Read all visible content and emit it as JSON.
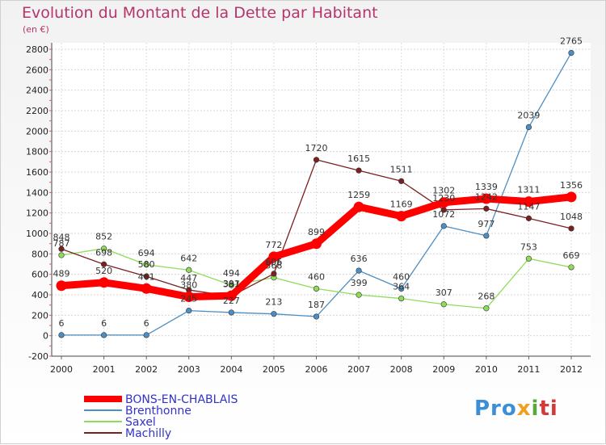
{
  "chart_data": {
    "type": "line",
    "title": "Evolution du Montant de la Dette par Habitant",
    "subtitle": "(en €)",
    "x": [
      "2000",
      "2001",
      "2002",
      "2003",
      "2004",
      "2005",
      "2006",
      "2007",
      "2008",
      "2009",
      "2010",
      "2011",
      "2012"
    ],
    "ylim": [
      -200,
      2800
    ],
    "yticks": [
      -200,
      0,
      200,
      400,
      600,
      800,
      1000,
      1200,
      1400,
      1600,
      1800,
      2000,
      2200,
      2400,
      2600,
      2800
    ],
    "grid": true,
    "legend_position": "bottom-left",
    "series": [
      {
        "name": "BONS-EN-CHABLAIS",
        "color": "#ff0000",
        "values": [
          489,
          520,
          461,
          380,
          391,
          772,
          899,
          1259,
          1169,
          1302,
          1339,
          1311,
          1356
        ],
        "labels": [
          "489",
          "520",
          "461",
          "380",
          "391",
          "772",
          "899",
          "1259",
          "1169",
          "1302",
          "1339",
          "1311",
          "1356"
        ]
      },
      {
        "name": "Brenthonne",
        "color": "#4d8fc4",
        "values": [
          6,
          6,
          6,
          245,
          227,
          213,
          187,
          636,
          460,
          1072,
          977,
          2039,
          2765
        ],
        "labels": [
          "6",
          "6",
          "6",
          "245",
          "227",
          "213",
          "187",
          "636",
          "460",
          "1072",
          "977",
          "2039",
          "2765"
        ]
      },
      {
        "name": "Saxel",
        "color": "#8fdc5a",
        "values": [
          787,
          852,
          694,
          642,
          494,
          568,
          460,
          399,
          364,
          307,
          268,
          753,
          669
        ],
        "labels": [
          "787",
          "852",
          "694",
          "642",
          "494",
          "568",
          "460",
          "399",
          "364",
          "307",
          "268",
          "753",
          "669"
        ]
      },
      {
        "name": "Machilly",
        "color": "#7a2020",
        "values": [
          848,
          698,
          580,
          447,
          387,
          606,
          1720,
          1615,
          1511,
          1230,
          1242,
          1147,
          1048
        ],
        "labels": [
          "848",
          "698",
          "580",
          "447",
          "387",
          "606",
          "1720",
          "1615",
          "1511",
          "1230",
          "1242",
          "1147",
          "1048"
        ]
      }
    ]
  },
  "logo": {
    "p1": "Pro",
    "p2": "x",
    "p3": "i",
    "p4": "ti"
  }
}
